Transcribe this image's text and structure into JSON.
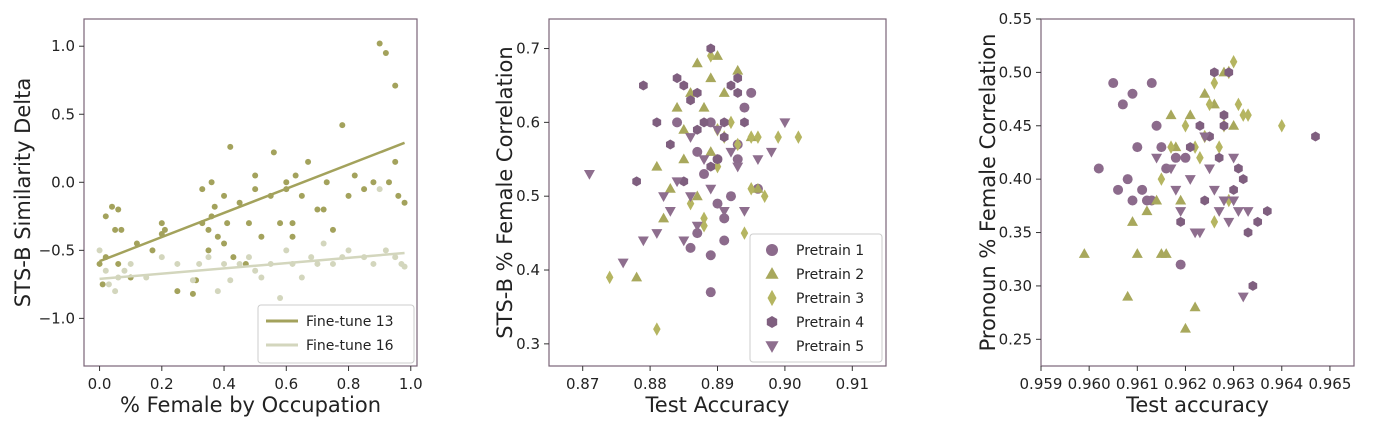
{
  "chart_data": [
    {
      "type": "scatter",
      "xlabel": "% Female by Occupation",
      "ylabel": "STS-B Similarity Delta",
      "xlim": [
        -0.05,
        1.02
      ],
      "ylim": [
        -1.35,
        1.2
      ],
      "xticks": [
        0.0,
        0.2,
        0.4,
        0.6,
        0.8,
        1.0
      ],
      "yticks": [
        -1.0,
        -0.5,
        0.0,
        0.5,
        1.0
      ],
      "xtick_labels": [
        "0.0",
        "0.2",
        "0.4",
        "0.6",
        "0.8",
        "1.0"
      ],
      "ytick_labels": [
        "−1.0",
        "−0.5",
        "0.0",
        "0.5",
        "1.0"
      ],
      "legend": {
        "placement": "lower-right",
        "entries": [
          "Fine-tune 13",
          "Fine-tune 16"
        ]
      },
      "series": [
        {
          "name": "Fine-tune 13",
          "color": "#a3a25c",
          "marker": "circle",
          "trendline": [
            [
              0.0,
              -0.58
            ],
            [
              0.98,
              0.29
            ]
          ],
          "x": [
            0.0,
            0.01,
            0.02,
            0.02,
            0.04,
            0.05,
            0.06,
            0.06,
            0.07,
            0.1,
            0.12,
            0.17,
            0.2,
            0.2,
            0.21,
            0.25,
            0.3,
            0.31,
            0.33,
            0.33,
            0.35,
            0.35,
            0.36,
            0.36,
            0.37,
            0.38,
            0.4,
            0.4,
            0.41,
            0.42,
            0.43,
            0.45,
            0.47,
            0.48,
            0.5,
            0.5,
            0.52,
            0.55,
            0.56,
            0.58,
            0.6,
            0.6,
            0.62,
            0.62,
            0.63,
            0.65,
            0.67,
            0.7,
            0.72,
            0.73,
            0.75,
            0.78,
            0.8,
            0.82,
            0.85,
            0.88,
            0.9,
            0.92,
            0.93,
            0.95,
            0.95,
            0.96,
            0.98
          ],
          "y": [
            -0.6,
            -0.75,
            -0.25,
            -0.55,
            -0.18,
            -0.35,
            -0.2,
            -0.6,
            -0.35,
            -0.7,
            -0.45,
            -0.5,
            -0.3,
            -0.38,
            -0.35,
            -0.8,
            -0.82,
            -0.72,
            -0.3,
            -0.05,
            -0.35,
            -0.5,
            0.0,
            -0.25,
            -0.18,
            -0.4,
            -0.1,
            -0.45,
            -0.3,
            0.26,
            -0.55,
            -0.15,
            -0.6,
            -0.3,
            0.05,
            -0.05,
            -0.4,
            -0.1,
            0.22,
            -0.3,
            0.0,
            -0.05,
            -0.3,
            -0.4,
            0.05,
            -0.1,
            0.15,
            -0.2,
            -0.2,
            0.0,
            -0.35,
            0.42,
            -0.1,
            0.05,
            -0.05,
            0.0,
            1.02,
            0.95,
            0.0,
            0.71,
            0.15,
            -0.1,
            -0.15
          ]
        },
        {
          "name": "Fine-tune 16",
          "color": "#d3d6bd",
          "marker": "circle",
          "trendline": [
            [
              0.0,
              -0.71
            ],
            [
              0.98,
              -0.52
            ]
          ],
          "x": [
            0.0,
            0.02,
            0.03,
            0.05,
            0.06,
            0.08,
            0.1,
            0.15,
            0.2,
            0.25,
            0.3,
            0.32,
            0.35,
            0.38,
            0.4,
            0.42,
            0.45,
            0.48,
            0.5,
            0.52,
            0.55,
            0.58,
            0.6,
            0.62,
            0.65,
            0.68,
            0.7,
            0.72,
            0.75,
            0.78,
            0.8,
            0.85,
            0.88,
            0.9,
            0.92,
            0.95,
            0.97,
            0.98
          ],
          "y": [
            -0.5,
            -0.65,
            -0.75,
            -0.8,
            -0.7,
            -0.65,
            -0.6,
            -0.7,
            -0.55,
            -0.6,
            -0.72,
            -0.6,
            -0.55,
            -0.8,
            -0.6,
            -0.72,
            -0.6,
            -0.55,
            -0.65,
            -0.7,
            -0.6,
            -0.85,
            -0.5,
            -0.6,
            -0.7,
            -0.55,
            -0.6,
            -0.45,
            -0.6,
            -0.55,
            -0.5,
            -0.55,
            -0.6,
            -0.05,
            -0.5,
            -0.55,
            -0.6,
            -0.62
          ]
        }
      ]
    },
    {
      "type": "scatter",
      "xlabel": "Test Accuracy",
      "ylabel": "STS-B % Female Correlation",
      "xlim": [
        0.865,
        0.915
      ],
      "ylim": [
        0.27,
        0.74
      ],
      "xticks": [
        0.87,
        0.88,
        0.89,
        0.9,
        0.91
      ],
      "yticks": [
        0.3,
        0.4,
        0.5,
        0.6,
        0.7
      ],
      "xtick_labels": [
        "0.87",
        "0.88",
        "0.89",
        "0.90",
        "0.91"
      ],
      "ytick_labels": [
        "0.3",
        "0.4",
        "0.5",
        "0.6",
        "0.7"
      ],
      "legend": {
        "placement": "lower-right",
        "entries": [
          "Pretrain 1",
          "Pretrain 2",
          "Pretrain 3",
          "Pretrain 4",
          "Pretrain 5"
        ]
      },
      "series": [
        {
          "name": "Pretrain 1",
          "color": "#8c6b8c",
          "marker": "circle",
          "x": [
            0.884,
            0.886,
            0.887,
            0.888,
            0.889,
            0.889,
            0.89,
            0.89,
            0.891,
            0.892,
            0.893,
            0.894,
            0.895,
            0.896,
            0.889,
            0.887,
            0.891,
            0.893
          ],
          "y": [
            0.6,
            0.43,
            0.56,
            0.53,
            0.37,
            0.42,
            0.55,
            0.49,
            0.44,
            0.5,
            0.57,
            0.62,
            0.64,
            0.51,
            0.6,
            0.45,
            0.47,
            0.55
          ]
        },
        {
          "name": "Pretrain 2",
          "color": "#a8a85c",
          "marker": "triangle",
          "x": [
            0.878,
            0.881,
            0.882,
            0.883,
            0.885,
            0.886,
            0.887,
            0.888,
            0.889,
            0.89,
            0.893,
            0.895,
            0.896,
            0.884,
            0.891,
            0.887,
            0.889,
            0.885
          ],
          "y": [
            0.39,
            0.54,
            0.47,
            0.51,
            0.59,
            0.64,
            0.68,
            0.62,
            0.66,
            0.69,
            0.67,
            0.58,
            0.51,
            0.62,
            0.64,
            0.5,
            0.56,
            0.55
          ]
        },
        {
          "name": "Pretrain 3",
          "color": "#b5b561",
          "marker": "diamond",
          "x": [
            0.874,
            0.881,
            0.886,
            0.888,
            0.889,
            0.89,
            0.891,
            0.893,
            0.894,
            0.895,
            0.896,
            0.899,
            0.902,
            0.897,
            0.892,
            0.89,
            0.888,
            0.895
          ],
          "y": [
            0.39,
            0.32,
            0.49,
            0.46,
            0.69,
            0.59,
            0.58,
            0.57,
            0.45,
            0.58,
            0.58,
            0.58,
            0.58,
            0.5,
            0.6,
            0.54,
            0.47,
            0.51
          ]
        },
        {
          "name": "Pretrain 4",
          "color": "#7f5f7f",
          "marker": "hexagon",
          "x": [
            0.878,
            0.879,
            0.881,
            0.883,
            0.884,
            0.885,
            0.886,
            0.887,
            0.888,
            0.889,
            0.89,
            0.891,
            0.892,
            0.893,
            0.894,
            0.885,
            0.887,
            0.889,
            0.891,
            0.893
          ],
          "y": [
            0.52,
            0.65,
            0.6,
            0.57,
            0.66,
            0.65,
            0.63,
            0.59,
            0.6,
            0.7,
            0.55,
            0.6,
            0.65,
            0.66,
            0.6,
            0.52,
            0.64,
            0.54,
            0.58,
            0.64
          ]
        },
        {
          "name": "Pretrain 5",
          "color": "#8e6e8e",
          "marker": "triangle-down",
          "x": [
            0.871,
            0.876,
            0.879,
            0.881,
            0.882,
            0.884,
            0.885,
            0.886,
            0.887,
            0.888,
            0.889,
            0.89,
            0.891,
            0.892,
            0.893,
            0.894,
            0.896,
            0.898,
            0.9,
            0.886,
            0.883
          ],
          "y": [
            0.53,
            0.41,
            0.44,
            0.45,
            0.5,
            0.52,
            0.44,
            0.5,
            0.46,
            0.55,
            0.51,
            0.59,
            0.48,
            0.56,
            0.54,
            0.48,
            0.55,
            0.56,
            0.6,
            0.58,
            0.48
          ]
        }
      ]
    },
    {
      "type": "scatter",
      "xlabel": "Test accuracy",
      "ylabel": "Pronoun % Female Correlation",
      "xlim": [
        0.959,
        0.9655
      ],
      "ylim": [
        0.225,
        0.55
      ],
      "xticks": [
        0.959,
        0.96,
        0.961,
        0.962,
        0.963,
        0.964,
        0.965
      ],
      "yticks": [
        0.25,
        0.3,
        0.35,
        0.4,
        0.45,
        0.5,
        0.55
      ],
      "xtick_labels": [
        "0.959",
        "0.960",
        "0.961",
        "0.962",
        "0.963",
        "0.964",
        "0.965"
      ],
      "ytick_labels": [
        "0.25",
        "0.30",
        "0.35",
        "0.40",
        "0.45",
        "0.50",
        "0.55"
      ],
      "series": [
        {
          "name": "Pretrain 1",
          "color": "#8c6b8c",
          "marker": "circle",
          "x": [
            0.9602,
            0.9605,
            0.9607,
            0.9608,
            0.9609,
            0.961,
            0.9611,
            0.9612,
            0.9613,
            0.9614,
            0.9615,
            0.9616,
            0.9618,
            0.9619,
            0.962,
            0.9606,
            0.9609,
            0.9613
          ],
          "y": [
            0.41,
            0.49,
            0.47,
            0.4,
            0.48,
            0.43,
            0.39,
            0.38,
            0.49,
            0.45,
            0.43,
            0.41,
            0.42,
            0.32,
            0.42,
            0.39,
            0.38,
            0.38
          ]
        },
        {
          "name": "Pretrain 2",
          "color": "#a8a85c",
          "marker": "triangle",
          "x": [
            0.9599,
            0.9608,
            0.9609,
            0.961,
            0.9612,
            0.9614,
            0.9615,
            0.9616,
            0.9617,
            0.9618,
            0.9619,
            0.962,
            0.9621,
            0.9622,
            0.9624,
            0.9626,
            0.9628,
            0.963
          ],
          "y": [
            0.33,
            0.29,
            0.36,
            0.33,
            0.37,
            0.38,
            0.33,
            0.33,
            0.46,
            0.43,
            0.38,
            0.26,
            0.46,
            0.28,
            0.48,
            0.47,
            0.5,
            0.45
          ]
        },
        {
          "name": "Pretrain 3",
          "color": "#b5b561",
          "marker": "diamond",
          "x": [
            0.9615,
            0.9617,
            0.962,
            0.9622,
            0.9624,
            0.9625,
            0.9626,
            0.9627,
            0.9628,
            0.9629,
            0.963,
            0.9631,
            0.9632,
            0.9633,
            0.964,
            0.9626,
            0.9629,
            0.9623
          ],
          "y": [
            0.4,
            0.43,
            0.45,
            0.43,
            0.44,
            0.47,
            0.49,
            0.43,
            0.45,
            0.5,
            0.51,
            0.47,
            0.46,
            0.46,
            0.45,
            0.36,
            0.38,
            0.42
          ]
        },
        {
          "name": "Pretrain 4",
          "color": "#7f5f7f",
          "marker": "hexagon",
          "x": [
            0.9619,
            0.9621,
            0.9623,
            0.9625,
            0.9626,
            0.9627,
            0.9628,
            0.9629,
            0.963,
            0.9631,
            0.9632,
            0.9633,
            0.9635,
            0.9637,
            0.9647,
            0.9624,
            0.9628,
            0.9634
          ],
          "y": [
            0.36,
            0.43,
            0.45,
            0.44,
            0.5,
            0.42,
            0.45,
            0.5,
            0.39,
            0.41,
            0.4,
            0.35,
            0.36,
            0.37,
            0.44,
            0.38,
            0.46,
            0.3
          ]
        },
        {
          "name": "Pretrain 5",
          "color": "#8e6e8e",
          "marker": "triangle-down",
          "x": [
            0.9614,
            0.9617,
            0.9619,
            0.9621,
            0.9623,
            0.9624,
            0.9626,
            0.9627,
            0.9628,
            0.9629,
            0.963,
            0.9631,
            0.9632,
            0.9633,
            0.9618,
            0.9625,
            0.963,
            0.9622
          ],
          "y": [
            0.42,
            0.41,
            0.37,
            0.4,
            0.35,
            0.44,
            0.39,
            0.37,
            0.38,
            0.36,
            0.38,
            0.37,
            0.29,
            0.37,
            0.39,
            0.41,
            0.42,
            0.35
          ]
        }
      ]
    }
  ]
}
